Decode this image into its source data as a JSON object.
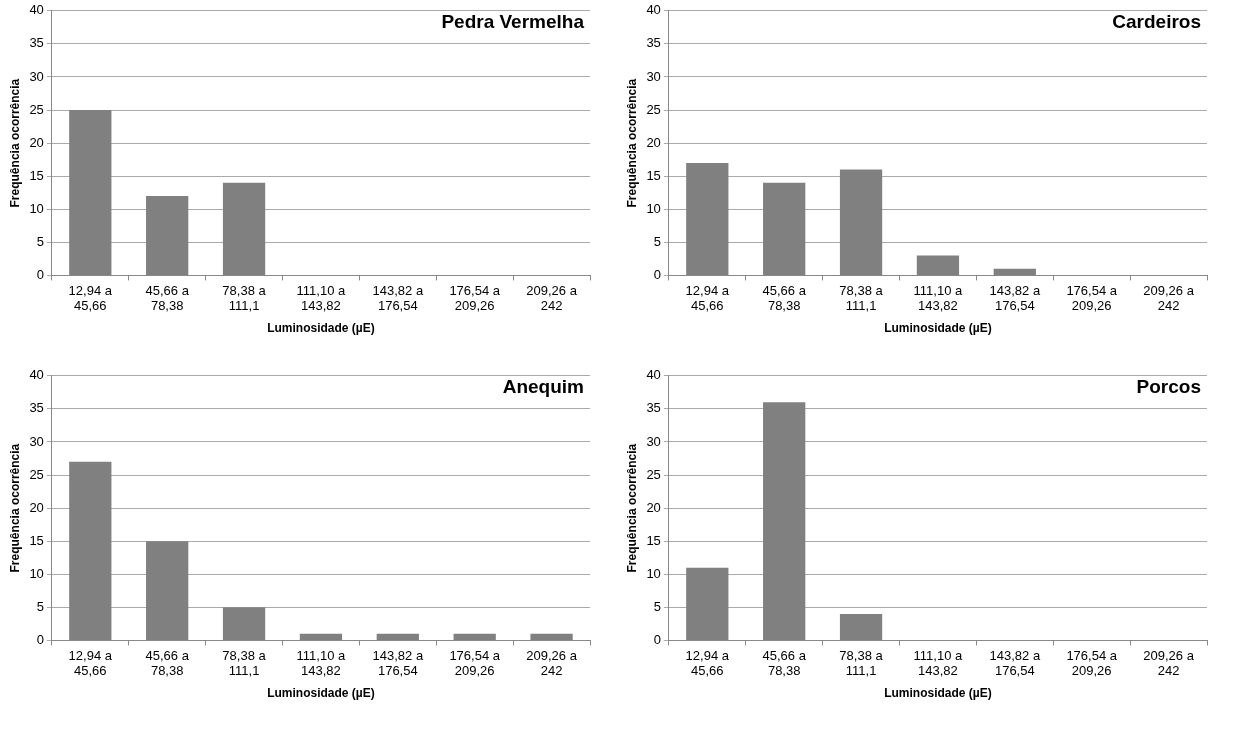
{
  "chart_data": [
    {
      "type": "bar",
      "title": "Pedra Vermelha",
      "xlabel": "Luminosidade (µE)",
      "ylabel": "Frequência ocorrência",
      "categories": [
        "12,94 a 45,66",
        "45,66 a 78,38",
        "78,38 a 111,1",
        "111,10 a 143,82",
        "143,82 a 176,54",
        "176,54 a 209,26",
        "209,26 a 242"
      ],
      "values": [
        25,
        12,
        14,
        0,
        0,
        0,
        0
      ],
      "color": "#808080",
      "ylim": [
        0,
        40
      ],
      "yticks": [
        0,
        5,
        10,
        15,
        20,
        25,
        30,
        35,
        40
      ],
      "grid": "y"
    },
    {
      "type": "bar",
      "title": "Cardeiros",
      "xlabel": "Luminosidade (µE)",
      "ylabel": "Frequência ocorrência",
      "categories": [
        "12,94 a 45,66",
        "45,66 a 78,38",
        "78,38 a 111,1",
        "111,10 a 143,82",
        "143,82 a 176,54",
        "176,54 a 209,26",
        "209,26 a 242"
      ],
      "values": [
        17,
        14,
        16,
        3,
        1,
        0,
        0
      ],
      "color": "#808080",
      "ylim": [
        0,
        40
      ],
      "yticks": [
        0,
        5,
        10,
        15,
        20,
        25,
        30,
        35,
        40
      ],
      "grid": "y"
    },
    {
      "type": "bar",
      "title": "Anequim",
      "xlabel": "Luminosidade (µE)",
      "ylabel": "Frequência ocorrência",
      "categories": [
        "12,94 a 45,66",
        "45,66 a 78,38",
        "78,38 a 111,1",
        "111,10 a 143,82",
        "143,82 a 176,54",
        "176,54 a 209,26",
        "209,26 a 242"
      ],
      "values": [
        27,
        15,
        5,
        1,
        1,
        1,
        1
      ],
      "color": "#808080",
      "ylim": [
        0,
        40
      ],
      "yticks": [
        0,
        5,
        10,
        15,
        20,
        25,
        30,
        35,
        40
      ],
      "grid": "y"
    },
    {
      "type": "bar",
      "title": "Porcos",
      "xlabel": "Luminosidade (µE)",
      "ylabel": "Frequência ocorrência",
      "categories": [
        "12,94 a 45,66",
        "45,66 a 78,38",
        "78,38 a 111,1",
        "111,10 a 143,82",
        "143,82 a 176,54",
        "176,54 a 209,26",
        "209,26 a 242"
      ],
      "values": [
        11,
        36,
        4,
        0,
        0,
        0,
        0
      ],
      "color": "#808080",
      "ylim": [
        0,
        40
      ],
      "yticks": [
        0,
        5,
        10,
        15,
        20,
        25,
        30,
        35,
        40
      ],
      "grid": "y"
    }
  ]
}
